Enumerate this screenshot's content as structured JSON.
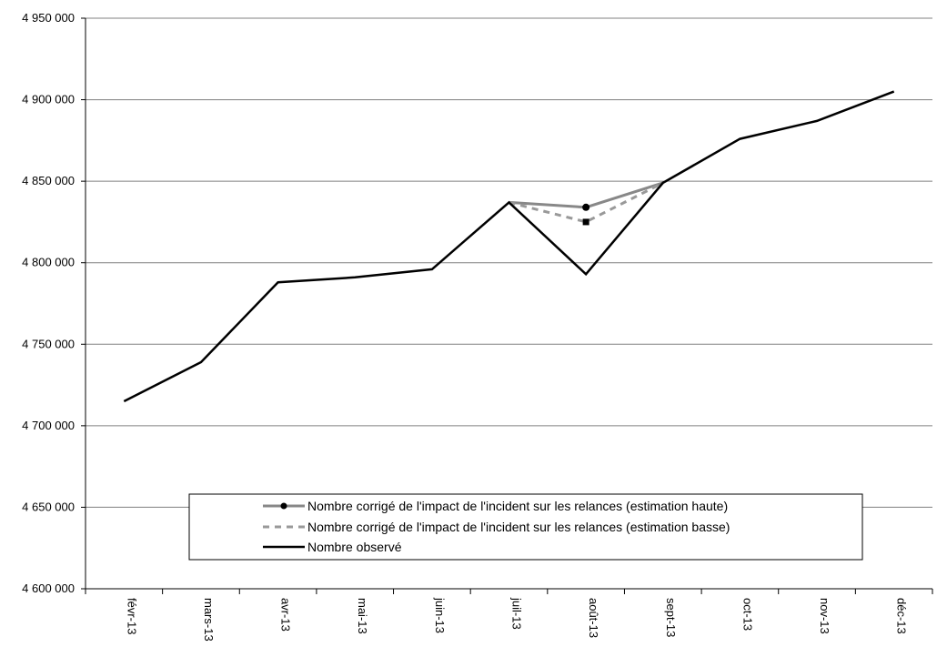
{
  "chart_data": {
    "type": "line",
    "title": "",
    "xlabel": "",
    "ylabel": "",
    "categories": [
      "févr-13",
      "mars-13",
      "avr-13",
      "mai-13",
      "juin-13",
      "juil-13",
      "août-13",
      "sept-13",
      "oct-13",
      "nov-13",
      "déc-13"
    ],
    "ylim": [
      4600000,
      4950000
    ],
    "yticks": [
      4600000,
      4650000,
      4700000,
      4750000,
      4800000,
      4850000,
      4900000,
      4950000
    ],
    "ytick_labels": [
      "4 600 000",
      "4 650 000",
      "4 700 000",
      "4 750 000",
      "4 800 000",
      "4 850 000",
      "4 900 000",
      "4 950 000"
    ],
    "grid": "horizontal",
    "legend_position": "bottom-center",
    "series": [
      {
        "name": "Nombre corrigé de l'impact de l'incident sur les relances (estimation haute)",
        "color": "#888888",
        "style": "solid-with-circle-marker",
        "values": [
          null,
          null,
          null,
          null,
          null,
          4837000,
          4834000,
          4849000,
          null,
          null,
          null
        ]
      },
      {
        "name": "Nombre corrigé de l'impact de l'incident sur les relances (estimation basse)",
        "color": "#999999",
        "style": "dashed-with-square-marker",
        "values": [
          null,
          null,
          null,
          null,
          null,
          4837000,
          4825000,
          4849000,
          null,
          null,
          null
        ]
      },
      {
        "name": "Nombre observé",
        "color": "#000000",
        "style": "solid",
        "values": [
          4715000,
          4739000,
          4788000,
          4791000,
          4796000,
          4837000,
          4793000,
          4849000,
          4876000,
          4887000,
          4905000
        ]
      }
    ]
  }
}
